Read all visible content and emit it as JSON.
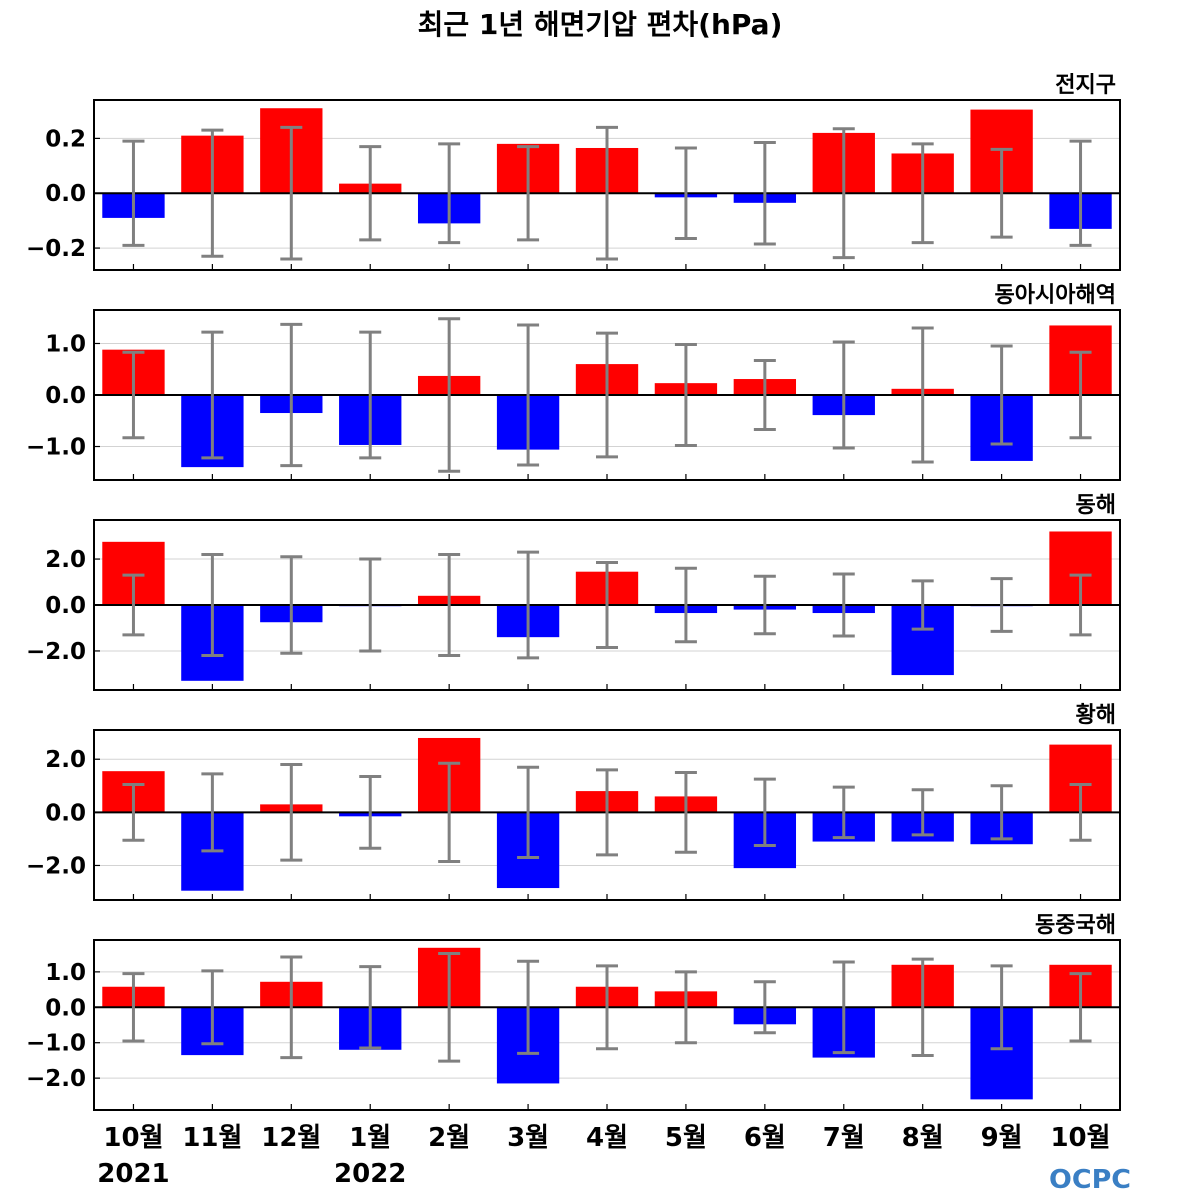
{
  "chart_data": {
    "type": "bar",
    "title": "최근 1년 해면기압 편차(hPa)",
    "categories": [
      "10월",
      "11월",
      "12월",
      "1월",
      "2월",
      "3월",
      "4월",
      "5월",
      "6월",
      "7월",
      "8월",
      "9월",
      "10월"
    ],
    "year_labels": [
      {
        "category_index": 0,
        "text": "2021"
      },
      {
        "category_index": 3,
        "text": "2022"
      }
    ],
    "colors": {
      "positive": "#ff0000",
      "negative": "#0000ff",
      "errorbar": "#808080",
      "zero_line": "#000000",
      "grid": "#d3d3d3"
    },
    "grid": true,
    "panels": [
      {
        "name": "전지구",
        "ylim": [
          -0.28,
          0.34
        ],
        "yticks": [
          -0.2,
          0.0,
          0.2
        ],
        "ytick_labels": [
          "−0.2",
          "0.0",
          "0.2"
        ],
        "values": [
          -0.09,
          0.21,
          0.31,
          0.035,
          -0.11,
          0.18,
          0.165,
          -0.015,
          -0.035,
          0.22,
          0.145,
          0.305,
          -0.13
        ],
        "errors": [
          0.19,
          0.23,
          0.24,
          0.17,
          0.18,
          0.17,
          0.24,
          0.165,
          0.185,
          0.235,
          0.18,
          0.16,
          0.19
        ]
      },
      {
        "name": "동아시아해역",
        "ylim": [
          -1.65,
          1.65
        ],
        "yticks": [
          -1.0,
          0.0,
          1.0
        ],
        "ytick_labels": [
          "−1.0",
          "0.0",
          "1.0"
        ],
        "values": [
          0.88,
          -1.4,
          -0.35,
          -0.97,
          0.37,
          -1.06,
          0.6,
          0.23,
          0.31,
          -0.39,
          0.12,
          -1.28,
          1.35
        ],
        "errors": [
          0.83,
          1.22,
          1.37,
          1.22,
          1.48,
          1.36,
          1.2,
          0.98,
          0.67,
          1.03,
          1.3,
          0.95,
          0.83
        ]
      },
      {
        "name": "동해",
        "ylim": [
          -3.7,
          3.7
        ],
        "yticks": [
          -2.0,
          0.0,
          2.0
        ],
        "ytick_labels": [
          "−2.0",
          "0.0",
          "2.0"
        ],
        "values": [
          2.75,
          -3.3,
          -0.75,
          -0.05,
          0.4,
          -1.4,
          1.45,
          -0.35,
          -0.2,
          -0.35,
          -3.05,
          -0.05,
          3.2
        ],
        "errors": [
          1.3,
          2.2,
          2.1,
          2.0,
          2.2,
          2.3,
          1.85,
          1.6,
          1.25,
          1.35,
          1.05,
          1.15,
          1.3
        ]
      },
      {
        "name": "황해",
        "ylim": [
          -3.3,
          3.1
        ],
        "yticks": [
          -2.0,
          0.0,
          2.0
        ],
        "ytick_labels": [
          "−2.0",
          "0.0",
          "2.0"
        ],
        "values": [
          1.55,
          -2.95,
          0.3,
          -0.15,
          2.8,
          -2.85,
          0.8,
          0.6,
          -2.1,
          -1.1,
          -1.1,
          -1.2,
          2.55
        ],
        "errors": [
          1.05,
          1.45,
          1.8,
          1.35,
          1.85,
          1.7,
          1.6,
          1.5,
          1.25,
          0.95,
          0.85,
          1.0,
          1.05
        ]
      },
      {
        "name": "동중국해",
        "ylim": [
          -2.9,
          1.9
        ],
        "yticks": [
          -2.0,
          -1.0,
          0.0,
          1.0
        ],
        "ytick_labels": [
          "−2.0",
          "−1.0",
          "0.0",
          "1.0"
        ],
        "values": [
          0.58,
          -1.35,
          0.72,
          -1.2,
          1.68,
          -2.15,
          0.58,
          0.45,
          -0.48,
          -1.42,
          1.2,
          -2.6,
          1.2
        ],
        "errors": [
          0.95,
          1.03,
          1.42,
          1.15,
          1.52,
          1.3,
          1.17,
          1.0,
          0.72,
          1.28,
          1.36,
          1.17,
          0.95
        ]
      }
    ],
    "logo_text": "OCPC"
  }
}
